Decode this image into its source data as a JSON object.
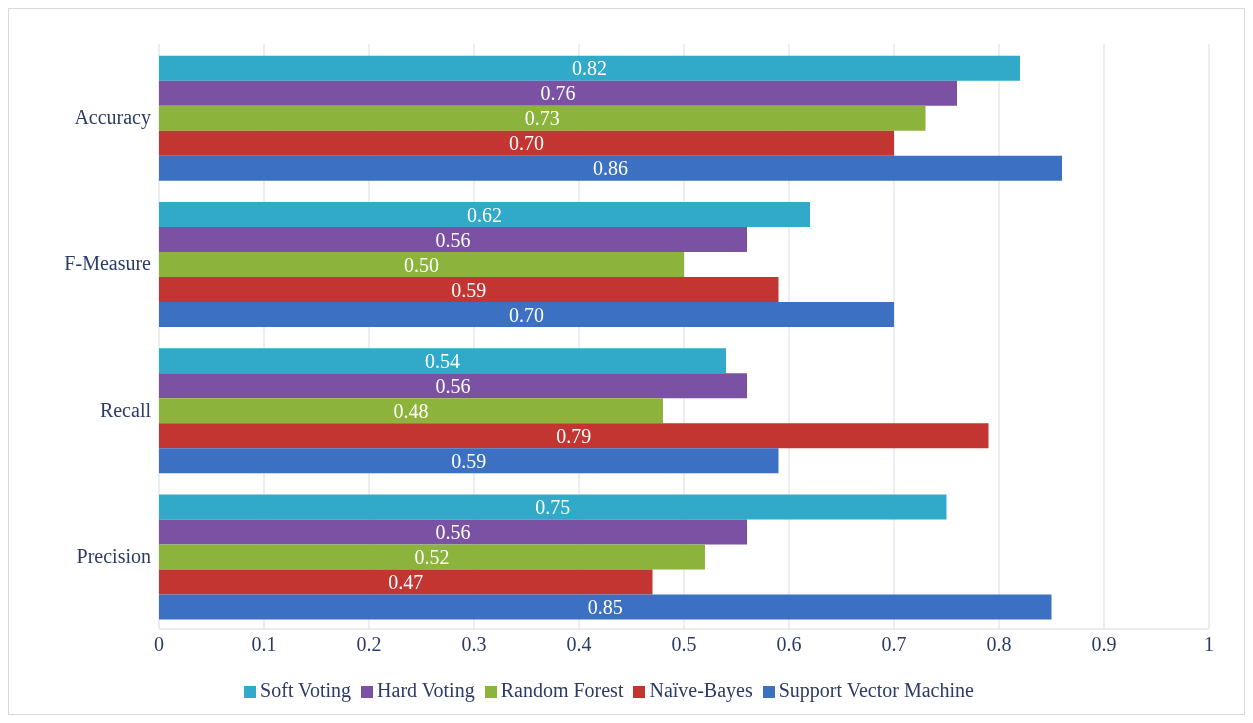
{
  "chart_data": {
    "type": "bar",
    "orientation": "horizontal",
    "categories": [
      "Accuracy",
      "F-Measure",
      "Recall",
      "Precision"
    ],
    "series": [
      {
        "name": "Soft Voting",
        "color": "#31a9c9",
        "values": [
          0.82,
          0.62,
          0.54,
          0.75
        ],
        "value_labels": [
          "0.82",
          "0.62",
          "0.54",
          "0.75"
        ]
      },
      {
        "name": "Hard Voting",
        "color": "#7b52a3",
        "values": [
          0.76,
          0.56,
          0.56,
          0.56
        ],
        "value_labels": [
          "0.76",
          "0.56",
          "0.56",
          "0.56"
        ]
      },
      {
        "name": "Random Forest",
        "color": "#8cb43c",
        "values": [
          0.73,
          0.5,
          0.48,
          0.52
        ],
        "value_labels": [
          "0.73",
          "0.50",
          "0.48",
          "0.52"
        ]
      },
      {
        "name": "Naïve-Bayes",
        "color": "#c23531",
        "values": [
          0.7,
          0.59,
          0.79,
          0.47
        ],
        "value_labels": [
          "0.70",
          "0.59",
          "0.79",
          "0.47"
        ]
      },
      {
        "name": "Support Vector Machine",
        "color": "#3b70c2",
        "values": [
          0.86,
          0.7,
          0.59,
          0.85
        ],
        "value_labels": [
          "0.86",
          "0.70",
          "0.59",
          "0.85"
        ]
      }
    ],
    "xlim": [
      0,
      1
    ],
    "xticks": [
      0,
      0.1,
      0.2,
      0.3,
      0.4,
      0.5,
      0.6,
      0.7,
      0.8,
      0.9,
      1
    ],
    "grid": "x",
    "legend": "bottom"
  }
}
